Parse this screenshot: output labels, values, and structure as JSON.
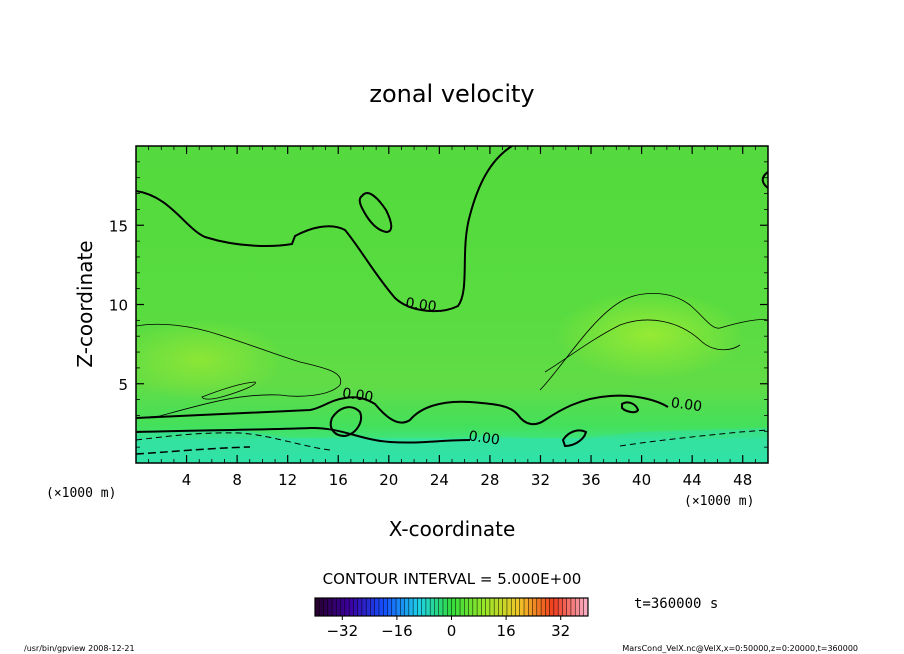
{
  "chart_data": {
    "type": "heatmap",
    "title": "zonal velocity",
    "xlabel": "X-coordinate",
    "ylabel": "Z-coordinate",
    "x_unit": "(×1000 m)",
    "xlim": [
      0,
      50
    ],
    "ylim": [
      0,
      20
    ],
    "x_ticks": [
      "4",
      "8",
      "12",
      "16",
      "20",
      "24",
      "28",
      "32",
      "36",
      "40",
      "44",
      "48"
    ],
    "y_ticks": [
      "5",
      "10",
      "15"
    ],
    "contour_labels": [
      {
        "text": "0.00",
        "x": 22.5,
        "z": 9.7
      },
      {
        "text": "0.00",
        "x": 17.5,
        "z": 4.0
      },
      {
        "text": "0.00",
        "x": 27.5,
        "z": 1.3
      },
      {
        "text": "0.00",
        "x": 43.5,
        "z": 3.4
      }
    ],
    "contour_interval": "CONTOUR INTERVAL = 5.000E+00",
    "colorbar": {
      "min": -40,
      "max": 40,
      "ticks": [
        "−32",
        "−16",
        "0",
        "16",
        "32"
      ],
      "tick_values": [
        -32,
        -16,
        0,
        16,
        32
      ]
    },
    "time_label": "t=360000  s",
    "footer_left": "/usr/bin/gpview   2008-12-21",
    "footer_right": "MarsCond_VelX.nc@VelX,x=0:50000,z=0:20000,t=360000"
  }
}
